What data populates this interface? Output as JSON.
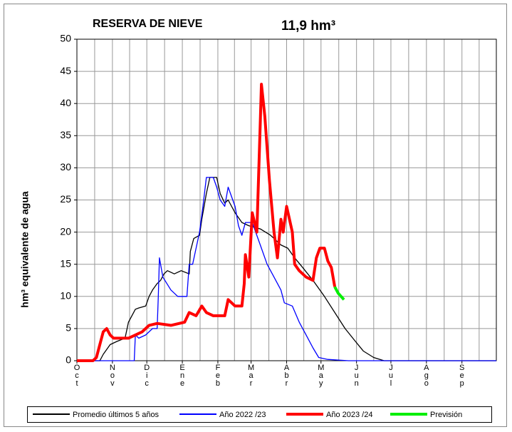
{
  "chart_data": {
    "type": "line",
    "title": "RESERVA DE NIEVE",
    "subtitle": "11,9 hm³",
    "y_label": "hm³ equivalente de agua",
    "xlim": [
      0,
      366
    ],
    "xticks": [
      {
        "value": 0,
        "label": "Oct"
      },
      {
        "value": 31,
        "label": "Nov"
      },
      {
        "value": 61,
        "label": "Dic"
      },
      {
        "value": 92,
        "label": "Ene"
      },
      {
        "value": 123,
        "label": "Feb"
      },
      {
        "value": 152,
        "label": "Mar"
      },
      {
        "value": 183,
        "label": "Abr"
      },
      {
        "value": 213,
        "label": "May"
      },
      {
        "value": 244,
        "label": "Jun"
      },
      {
        "value": 274,
        "label": "Jul"
      },
      {
        "value": 305,
        "label": "Ago"
      },
      {
        "value": 336,
        "label": "Sep"
      }
    ],
    "ylim": [
      0,
      50
    ],
    "yticks": [
      0,
      5,
      10,
      15,
      20,
      25,
      30,
      35,
      40,
      45,
      50
    ],
    "grid": true,
    "legend": "bottom",
    "series": [
      {
        "name": "Promedio últimos 5 años",
        "color": "#000000",
        "width": 1.3,
        "x": [
          0,
          20,
          23,
          29,
          35,
          42,
          45,
          51,
          54,
          60,
          63,
          66,
          70,
          73,
          76,
          79,
          85,
          91,
          98,
          99,
          102,
          107,
          109,
          113,
          116,
          122,
          125,
          129,
          132,
          138,
          144,
          150,
          160,
          169,
          178,
          184,
          190,
          197,
          206,
          216,
          225,
          234,
          243,
          250,
          259,
          268,
          366
        ],
        "values": [
          0,
          0,
          1,
          2.5,
          3,
          3.5,
          6,
          8,
          8.2,
          8.5,
          10,
          11,
          12,
          12.5,
          13.5,
          14,
          13.5,
          14,
          13.5,
          17,
          19,
          19.5,
          22,
          26,
          28.5,
          28.5,
          26,
          24.5,
          25,
          23,
          21.5,
          21,
          20.5,
          19.5,
          18,
          17.5,
          16,
          14.5,
          12.5,
          10,
          7.5,
          5,
          3,
          1.5,
          0.5,
          0,
          0
        ]
      },
      {
        "name": "Año 2022 /23",
        "color": "#0000ff",
        "width": 1.3,
        "x": [
          0,
          50,
          51,
          54,
          60,
          66,
          70,
          71,
          72,
          75,
          82,
          88,
          96,
          98,
          101,
          107,
          110,
          113,
          119,
          122,
          125,
          129,
          132,
          138,
          141,
          144,
          147,
          153,
          160,
          166,
          172,
          178,
          181,
          188,
          194,
          200,
          206,
          211,
          219,
          237,
          366
        ],
        "values": [
          0,
          0,
          4,
          3.5,
          4,
          5,
          5,
          10,
          16,
          13,
          11,
          10,
          10,
          15,
          15,
          20,
          24,
          28.5,
          28.5,
          27,
          25,
          24,
          27,
          24,
          21,
          19.5,
          21.5,
          21.5,
          18,
          15,
          13,
          11,
          9,
          8.5,
          6,
          4,
          2,
          0.5,
          0.2,
          0,
          0
        ]
      },
      {
        "name": "Año 2023 /24",
        "color": "#ff0000",
        "width": 4,
        "x": [
          0,
          14,
          17,
          20,
          23,
          26,
          29,
          32,
          39,
          45,
          51,
          57,
          63,
          70,
          82,
          94,
          98,
          104,
          109,
          113,
          119,
          129,
          132,
          138,
          144,
          146,
          147,
          150,
          153,
          157,
          160,
          161,
          164,
          168,
          172,
          175,
          178,
          180,
          183,
          188,
          190,
          194,
          200,
          206,
          209,
          212,
          216,
          219,
          222,
          225
        ],
        "values": [
          0,
          0,
          0.5,
          2.5,
          4.5,
          5,
          4,
          3.5,
          3.5,
          3.5,
          4,
          4.5,
          5.5,
          5.8,
          5.5,
          6,
          7.5,
          7,
          8.5,
          7.5,
          7,
          7,
          9.5,
          8.5,
          8.5,
          12,
          16.5,
          13,
          23,
          20,
          37,
          43,
          38,
          28,
          20,
          16,
          22,
          20,
          24,
          20,
          15,
          14,
          13,
          12.5,
          16,
          17.5,
          17.5,
          15.5,
          14.5,
          11.5
        ]
      },
      {
        "name": "Previsión",
        "color": "#00ee00",
        "width": 4,
        "x": [
          225,
          228,
          233
        ],
        "values": [
          11.5,
          10.5,
          9.5
        ]
      }
    ]
  }
}
